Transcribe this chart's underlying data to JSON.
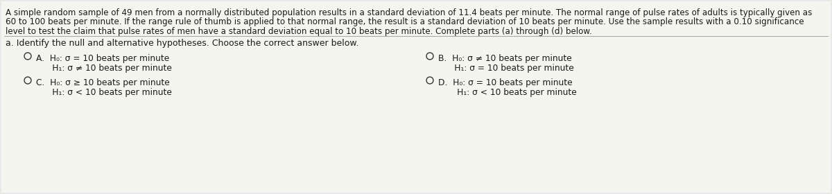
{
  "background_color": "#e8e8e8",
  "content_background": "#f5f5f0",
  "header_text_line1": "A simple random sample of 49 men from a normally distributed population results in a standard deviation of 11.4 beats per minute. The normal range of pulse rates of adults is typically given as",
  "header_text_line2": "60 to 100 beats per minute. If the range rule of thumb is applied to that normal range, the result is a standard deviation of 10 beats per minute. Use the sample results with a 0.10 significance",
  "header_text_line3": "level to test the claim that pulse rates of men have a standard deviation equal to 10 beats per minute. Complete parts (a) through (d) below.",
  "section_label": "a. Identify the null and alternative hypotheses. Choose the correct answer below.",
  "opt_A1": "A.  H₀: σ = 10 beats per minute",
  "opt_A2": "      H₁: σ ≠ 10 beats per minute",
  "opt_B1": "B.  H₀: σ ≠ 10 beats per minute",
  "opt_B2": "      H₁: σ = 10 beats per minute",
  "opt_C1": "C.  H₀: σ ≥ 10 beats per minute",
  "opt_C2": "      H₁: σ < 10 beats per minute",
  "opt_D1": "D.  H₀: σ = 10 beats per minute",
  "opt_D2": "       H₁: σ < 10 beats per minute",
  "text_color": "#1a1a1a",
  "header_fontsize": 8.6,
  "body_fontsize": 8.8,
  "section_fontsize": 9.0,
  "divider_color": "#aaaaaa",
  "circle_color": "#333333"
}
